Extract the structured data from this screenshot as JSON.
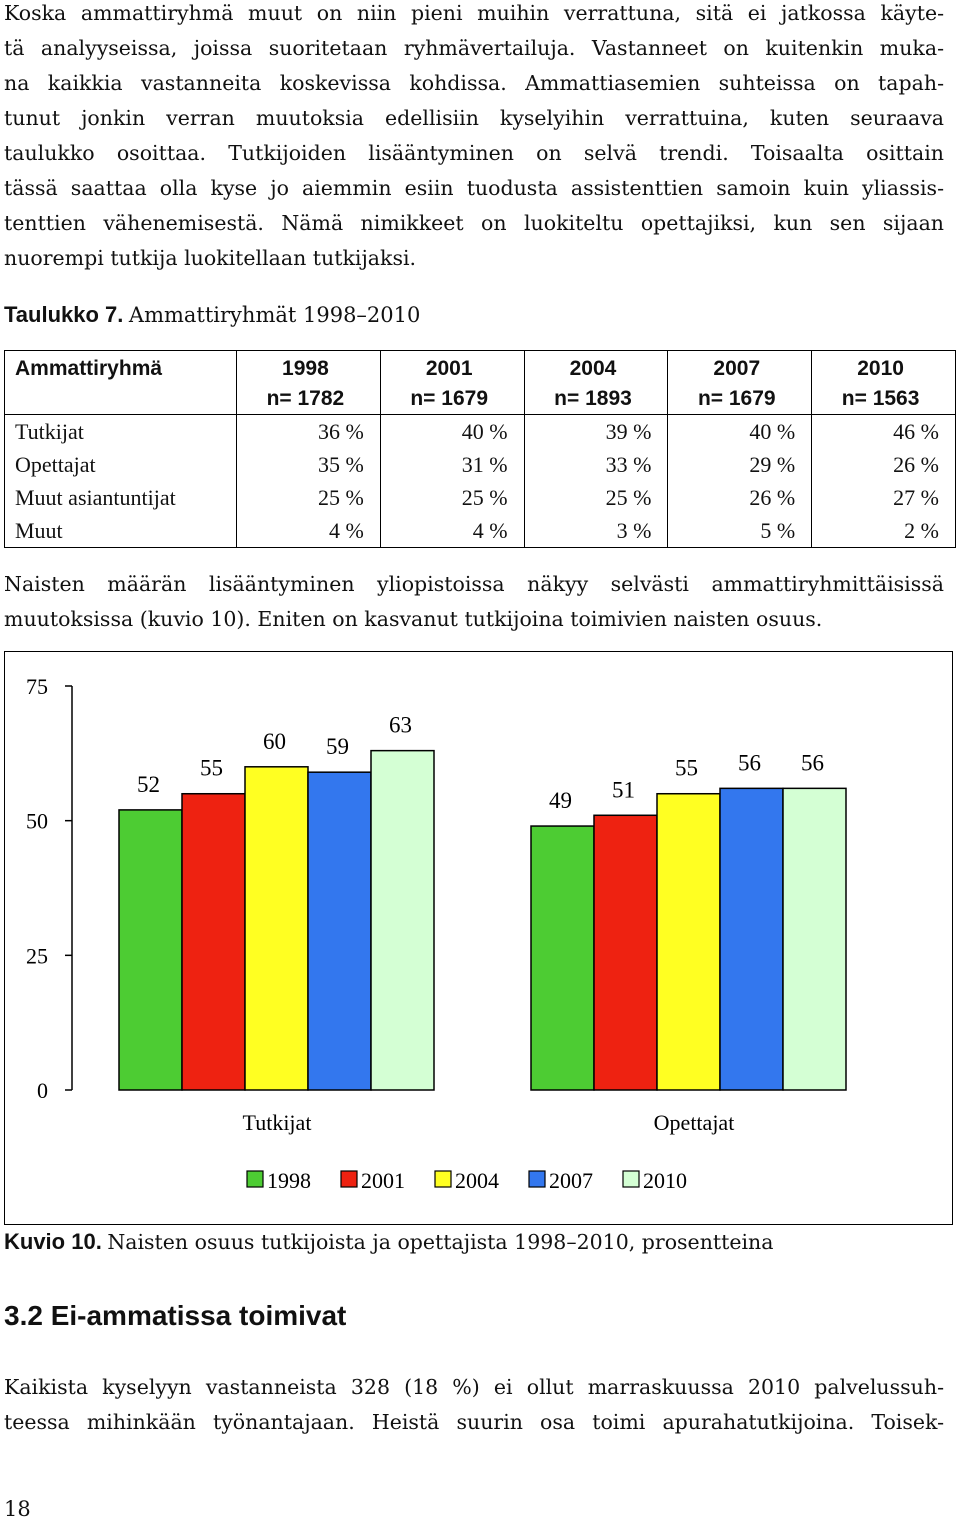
{
  "intro_paragraph": {
    "lines": [
      "Koska ammattiryhmä muut on niin pieni muihin verrattuna, sitä ei jatkossa käyte-",
      "tä analyyseissa, joissa suoritetaan ryhmävertailuja. Vastanneet on kuitenkin muka-",
      "na kaikkia vastanneita koskevissa kohdissa. Ammattiasemien suhteissa on tapah-",
      "tunut jonkin verran muutoksia edellisiin kyselyihin verrattuina, kuten seuraava",
      "taulukko osoittaa. Tutkijoiden lisääntyminen on selvä trendi. Toisaalta osittain",
      "tässä saattaa olla kyse jo aiemmin esiin tuodusta assistenttien samoin kuin yliassis-",
      "tenttien vähenemisestä. Nämä nimikkeet on luokiteltu opettajiksi, kun sen sijaan",
      "nuorempi tutkija luokitellaan tutkijaksi."
    ]
  },
  "table_caption": {
    "label": "Taulukko 7.",
    "text": "Ammattiryhmät 1998–2010"
  },
  "table": {
    "header": {
      "group": "Ammattiryhmä",
      "cols": [
        {
          "year": "1998",
          "n": "n= 1782"
        },
        {
          "year": "2001",
          "n": "n= 1679"
        },
        {
          "year": "2004",
          "n": "n= 1893"
        },
        {
          "year": "2007",
          "n": "n= 1679"
        },
        {
          "year": "2010",
          "n": "n= 1563"
        }
      ]
    },
    "rows": [
      {
        "label": "Tutkijat",
        "values": [
          "36 %",
          "40 %",
          "39 %",
          "40 %",
          "46 %"
        ]
      },
      {
        "label": "Opettajat",
        "values": [
          "35 %",
          "31 %",
          "33 %",
          "29 %",
          "26 %"
        ]
      },
      {
        "label": "Muut asiantuntijat",
        "values": [
          "25 %",
          "25 %",
          "25 %",
          "26 %",
          "27 %"
        ]
      },
      {
        "label": "Muut",
        "values": [
          "4 %",
          "4 %",
          "3 %",
          "5 %",
          "2 %"
        ]
      }
    ]
  },
  "middle_paragraph": {
    "lines": [
      "Naisten määrän lisääntyminen yliopistoissa näkyy selvästi ammattiryhmittäisissä",
      "muutoksissa (kuvio 10). Eniten on kasvanut tutkijoina toimivien naisten osuus."
    ]
  },
  "chart_data": {
    "type": "bar",
    "categories": [
      "Tutkijat",
      "Opettajat"
    ],
    "series": [
      {
        "name": "1998",
        "color": "#4dcc33",
        "values": [
          52,
          49
        ]
      },
      {
        "name": "2001",
        "color": "#ee2211",
        "values": [
          55,
          51
        ]
      },
      {
        "name": "2004",
        "color": "#ffff22",
        "values": [
          60,
          55
        ]
      },
      {
        "name": "2007",
        "color": "#3377ee",
        "values": [
          59,
          56
        ]
      },
      {
        "name": "2010",
        "color": "#d4ffd4",
        "values": [
          63,
          56
        ]
      }
    ],
    "ylim": [
      0,
      75
    ],
    "yticks": [
      "0",
      "25",
      "50",
      "75"
    ],
    "legend": "bottom",
    "grid": false
  },
  "figure_caption": {
    "label": "Kuvio 10.",
    "text": "Naisten osuus tutkijoista ja opettajista 1998–2010, prosentteina"
  },
  "section_heading": "3.2 Ei-ammatissa toimivat",
  "final_paragraph": {
    "lines": [
      "Kaikista kyselyyn vastanneista 328 (18 %) ei ollut marraskuussa 2010 palvelussuh-",
      "teessa mihinkään työnantajaan. Heistä suurin osa toimi apurahatutkijoina. Toisek-"
    ]
  },
  "page_number": "18"
}
